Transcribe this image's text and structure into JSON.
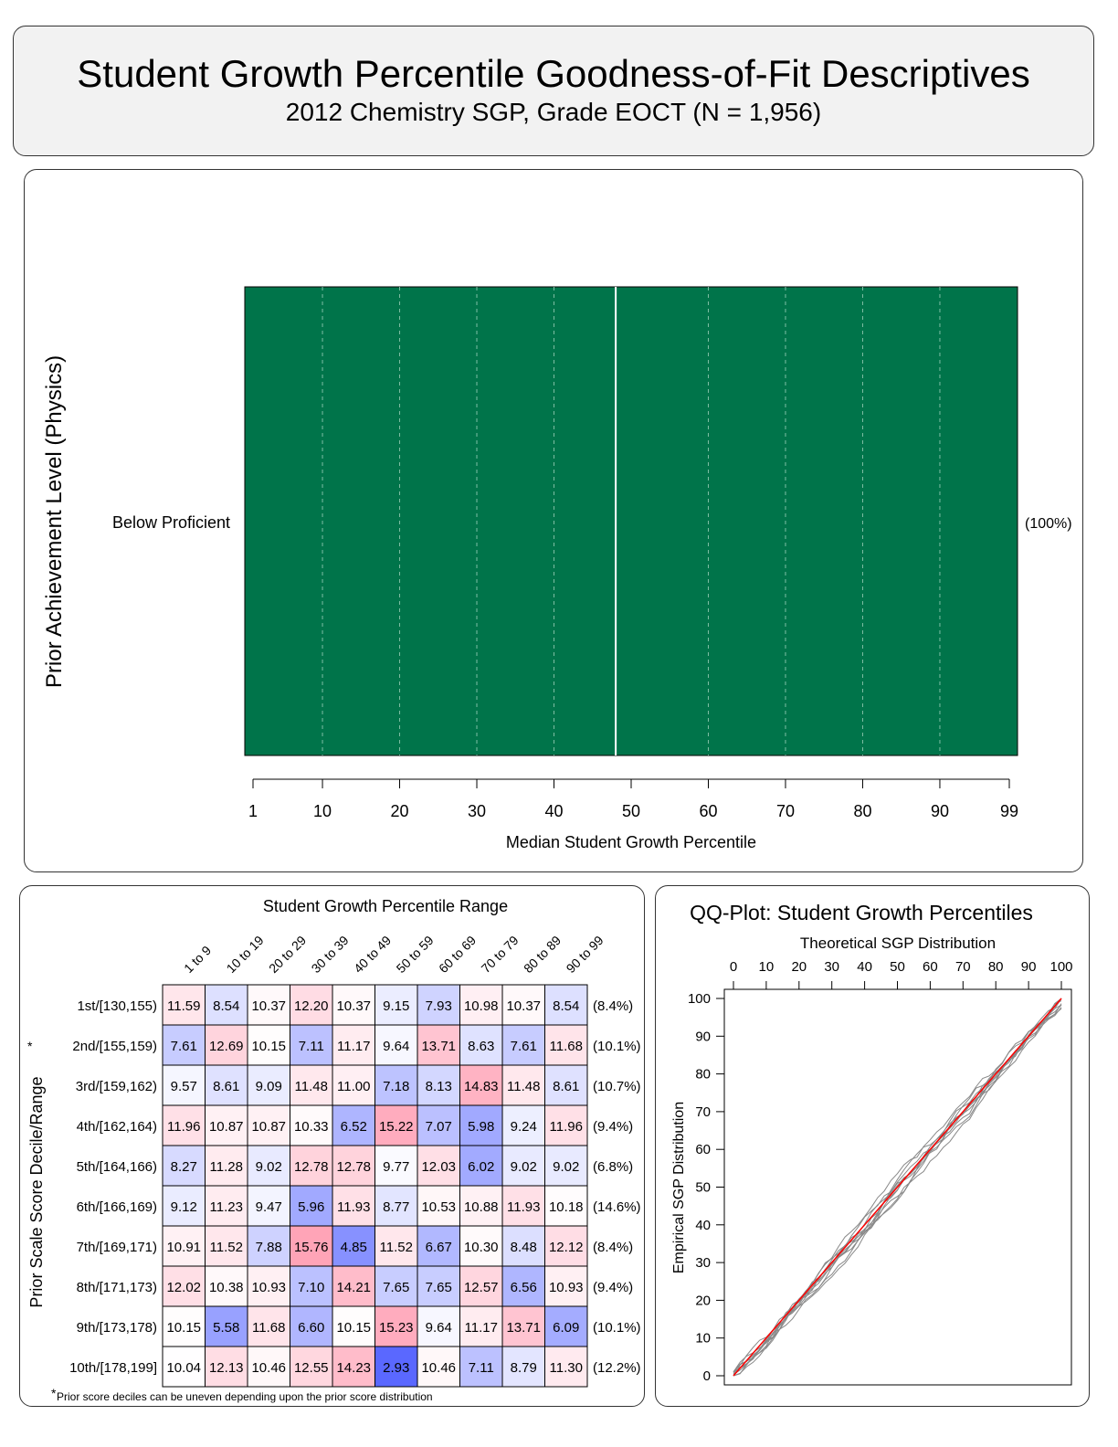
{
  "header": {
    "title": "Student Growth Percentile Goodness-of-Fit Descriptives",
    "subtitle": "2012 Chemistry SGP, Grade EOCT (N = 1,956)"
  },
  "colors": {
    "bar_fill": "#00744A",
    "qq_reference_line": "#ff0000",
    "qq_empirical_lines": "#888888",
    "high_cell": "#f08090",
    "low_cell": "#5060e0"
  },
  "chart_data": [
    {
      "type": "bar",
      "orientation": "horizontal",
      "xlabel": "Median Student Growth Percentile",
      "ylabel": "Prior Achievement Level (Physics)",
      "xlim": [
        1,
        99
      ],
      "xticks": [
        "1",
        "10",
        "20",
        "30",
        "40",
        "50",
        "60",
        "70",
        "80",
        "90",
        "99"
      ],
      "categories": [
        "Below Proficient"
      ],
      "percent_labels": [
        "(100%)"
      ],
      "median_sgp": [
        48
      ],
      "grid": "dashed vertical lines at deciles"
    },
    {
      "type": "heatmap",
      "title": "Student Growth Percentile Range",
      "ylabel": "Prior Scale Score Decile/Range",
      "ylabel_marker": "*",
      "columns": [
        "1 to 9",
        "10 to 19",
        "20 to 29",
        "30 to 39",
        "40 to 49",
        "50 to 59",
        "60 to 69",
        "70 to 79",
        "80 to 89",
        "90 to 99"
      ],
      "rows": [
        "1st/[130,155)",
        "2nd/[155,159)",
        "3rd/[159,162)",
        "4th/[162,164)",
        "5th/[164,166)",
        "6th/[166,169)",
        "7th/[169,171)",
        "8th/[171,173)",
        "9th/[173,178)",
        "10th/[178,199]"
      ],
      "values": [
        [
          "11.59",
          "8.54",
          "10.37",
          "12.20",
          "10.37",
          "9.15",
          "7.93",
          "10.98",
          "10.37",
          "8.54"
        ],
        [
          "7.61",
          "12.69",
          "10.15",
          "7.11",
          "11.17",
          "9.64",
          "13.71",
          "8.63",
          "7.61",
          "11.68"
        ],
        [
          "9.57",
          "8.61",
          "9.09",
          "11.48",
          "11.00",
          "7.18",
          "8.13",
          "14.83",
          "11.48",
          "8.61"
        ],
        [
          "11.96",
          "10.87",
          "10.87",
          "10.33",
          "6.52",
          "15.22",
          "7.07",
          "5.98",
          "9.24",
          "11.96"
        ],
        [
          "8.27",
          "11.28",
          "9.02",
          "12.78",
          "12.78",
          "9.77",
          "12.03",
          "6.02",
          "9.02",
          "9.02"
        ],
        [
          "9.12",
          "11.23",
          "9.47",
          "5.96",
          "11.93",
          "8.77",
          "10.53",
          "10.88",
          "11.93",
          "10.18"
        ],
        [
          "10.91",
          "11.52",
          "7.88",
          "15.76",
          "4.85",
          "11.52",
          "6.67",
          "10.30",
          "8.48",
          "12.12"
        ],
        [
          "12.02",
          "10.38",
          "10.93",
          "7.10",
          "14.21",
          "7.65",
          "7.65",
          "12.57",
          "6.56",
          "10.93"
        ],
        [
          "10.15",
          "5.58",
          "11.68",
          "6.60",
          "10.15",
          "15.23",
          "9.64",
          "11.17",
          "13.71",
          "6.09"
        ],
        [
          "10.04",
          "12.13",
          "10.46",
          "12.55",
          "14.23",
          "2.93",
          "10.46",
          "7.11",
          "8.79",
          "11.30"
        ]
      ],
      "row_percents": [
        "(8.4%)",
        "(10.1%)",
        "(10.7%)",
        "(9.4%)",
        "(6.8%)",
        "(14.6%)",
        "(8.4%)",
        "(9.4%)",
        "(10.1%)",
        "(12.2%)"
      ],
      "footnote_marker": "*",
      "footnote": "Prior score deciles can be uneven depending upon the prior score distribution"
    },
    {
      "type": "line",
      "title": "QQ-Plot: Student Growth Percentiles",
      "xlabel": "Theoretical SGP Distribution",
      "ylabel": "Empirical SGP Distribution",
      "xlim": [
        0,
        100
      ],
      "ylim": [
        0,
        100
      ],
      "xticks": [
        "0",
        "10",
        "20",
        "30",
        "40",
        "50",
        "60",
        "70",
        "80",
        "90",
        "100"
      ],
      "yticks": [
        "0",
        "10",
        "20",
        "30",
        "40",
        "50",
        "60",
        "70",
        "80",
        "90",
        "100"
      ],
      "reference_line": [
        [
          0,
          0
        ],
        [
          100,
          100
        ]
      ],
      "empirical_series_count": 10
    }
  ]
}
